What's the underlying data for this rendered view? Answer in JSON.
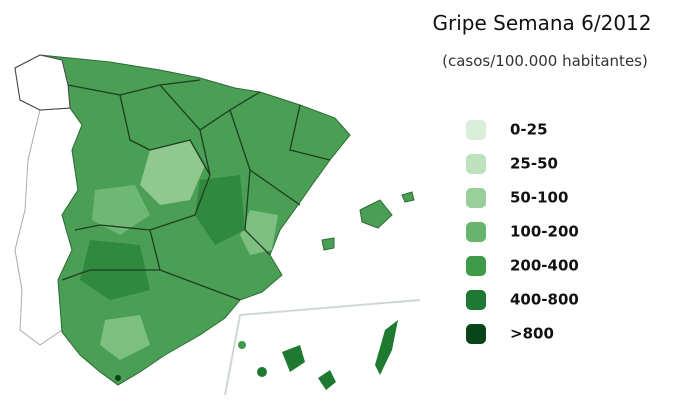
{
  "title": "Gripe Semana 6/2012",
  "subtitle": "(casos/100.000 habitantes)",
  "legend": [
    {
      "label": "0-25",
      "color": "#d8eed8"
    },
    {
      "label": "25-50",
      "color": "#bde2bd"
    },
    {
      "label": "50-100",
      "color": "#98cf9a"
    },
    {
      "label": "100-200",
      "color": "#68b46e"
    },
    {
      "label": "200-400",
      "color": "#3c9a48"
    },
    {
      "label": "400-800",
      "color": "#1d7a30"
    },
    {
      "label": ">800",
      "color": "#0a4419"
    }
  ]
}
